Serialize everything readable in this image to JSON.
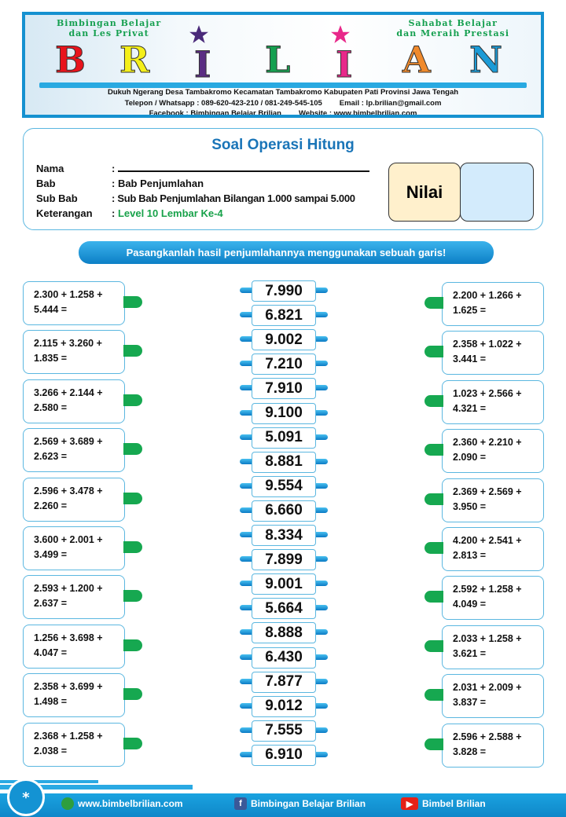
{
  "banner": {
    "tagline_left": [
      "Bimbingan Belajar",
      "dan Les Privat"
    ],
    "tagline_right": [
      "Sahabat Belajar",
      "dan Meraih Prestasi"
    ],
    "logo": "BRILIAN",
    "address": "Dukuh Ngerang Desa Tambakromo Kecamatan Tambakromo Kabupaten Pati Provinsi Jawa Tengah",
    "phone": "Telepon / Whatsapp : 089-620-423-210 / 081-249-545-105",
    "email": "Email : lp.brilian@gmail.com",
    "facebook": "Facebook : Bimbingan Belajar Brilian",
    "website": "Website : www.bimbelbrilian.com"
  },
  "header": {
    "title": "Soal Operasi Hitung",
    "fields": [
      {
        "label": "Nama",
        "value": ":"
      },
      {
        "label": "Bab",
        "value": ": Bab Penjumlahan"
      },
      {
        "label": "Sub Bab",
        "value": ": Sub Bab Penjumlahan Bilangan 1.000 sampai 5.000"
      },
      {
        "label": "Keterangan",
        "value": ": ",
        "highlight": "Level 10 Lembar Ke-4"
      }
    ],
    "nilai_label": "Nilai",
    "nilai_value": ""
  },
  "instruction": "Pasangkanlah hasil penjumlahannya menggunakan sebuah garis!",
  "left_questions": [
    [
      "2.300 + 1.258 +",
      "5.444 ="
    ],
    [
      "2.115 + 3.260 +",
      "1.835 ="
    ],
    [
      "3.266 + 2.144 +",
      "2.580 ="
    ],
    [
      "2.569 + 3.689 +",
      "2.623 ="
    ],
    [
      "2.596 + 3.478 +",
      "2.260 ="
    ],
    [
      "3.600 + 2.001 +",
      "3.499 ="
    ],
    [
      "2.593 + 1.200 +",
      "2.637 ="
    ],
    [
      "1.256 + 3.698 +",
      "4.047 ="
    ],
    [
      "2.358 + 3.699 +",
      "1.498 ="
    ],
    [
      "2.368 + 1.258 +",
      "2.038 ="
    ]
  ],
  "answers": [
    "7.990",
    "6.821",
    "9.002",
    "7.210",
    "7.910",
    "9.100",
    "5.091",
    "8.881",
    "9.554",
    "6.660",
    "8.334",
    "7.899",
    "9.001",
    "5.664",
    "8.888",
    "6.430",
    "7.877",
    "9.012",
    "7.555",
    "6.910"
  ],
  "right_questions": [
    [
      "2.200 + 1.266 +",
      "1.625 ="
    ],
    [
      "2.358 + 1.022 +",
      "3.441 ="
    ],
    [
      "1.023 + 2.566 +",
      "4.321 ="
    ],
    [
      "2.360 + 2.210 +",
      "2.090 ="
    ],
    [
      "2.369 + 2.569 +",
      "3.950 ="
    ],
    [
      "4.200 + 2.541 +",
      "2.813 ="
    ],
    [
      "2.592 + 1.258 +",
      "4.049 ="
    ],
    [
      "2.033 + 1.258 +",
      "3.621 ="
    ],
    [
      "2.031 + 2.009 +",
      "3.837 ="
    ],
    [
      "2.596 + 2.588 +",
      "3.828 ="
    ]
  ],
  "footer": {
    "badge": "*",
    "website": "www.bimbelbrilian.com",
    "facebook": "Bimbingan Belajar Brilian",
    "youtube": "Bimbel Brilian"
  },
  "colors": {
    "accent": "#1591d0",
    "title": "#1a75b8",
    "green": "#16a850",
    "nilai_bg": "#fff0cc",
    "score_bg": "#d3ebfc"
  }
}
